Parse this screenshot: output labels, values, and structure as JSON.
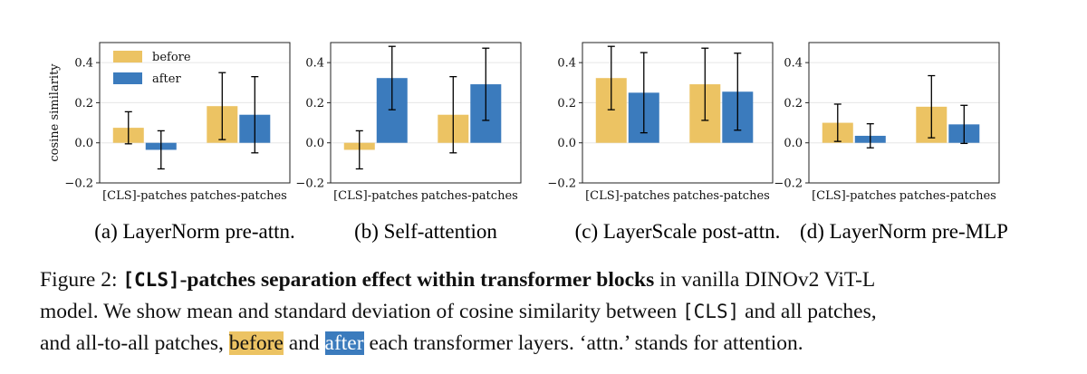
{
  "colors": {
    "before": "#ecc363",
    "after": "#3b7bbd",
    "grid": "#e6e6e6",
    "error_bar": "#000000"
  },
  "legend": {
    "before": "before",
    "after": "after",
    "position": "upper-left (first panel)"
  },
  "ylabel": "cosine similarity",
  "chart_data": [
    {
      "type": "bar",
      "caption": "(a) LayerNorm pre-attn.",
      "categories": [
        "[CLS]-patches",
        "patches-patches"
      ],
      "ylim": [
        -0.2,
        0.5
      ],
      "yticks": [
        "0.4",
        "0.2",
        "0.0",
        "−0.2"
      ],
      "ylabel": "cosine similarity",
      "grid": true,
      "series": [
        {
          "name": "before",
          "values": [
            0.075,
            0.183
          ],
          "err": [
            0.08,
            0.167
          ]
        },
        {
          "name": "after",
          "values": [
            -0.035,
            0.14
          ],
          "err": [
            0.095,
            0.19
          ]
        }
      ]
    },
    {
      "type": "bar",
      "caption": "(b) Self-attention",
      "categories": [
        "[CLS]-patches",
        "patches-patches"
      ],
      "ylim": [
        -0.2,
        0.5
      ],
      "yticks": [
        "0.4",
        "0.2",
        "0.0",
        "−0.2"
      ],
      "grid": true,
      "series": [
        {
          "name": "before",
          "values": [
            -0.035,
            0.14
          ],
          "err": [
            0.095,
            0.19
          ]
        },
        {
          "name": "after",
          "values": [
            0.323,
            0.292
          ],
          "err": [
            0.158,
            0.18
          ]
        }
      ]
    },
    {
      "type": "bar",
      "caption": "(c) LayerScale post-attn.",
      "categories": [
        "[CLS]-patches",
        "patches-patches"
      ],
      "ylim": [
        -0.2,
        0.5
      ],
      "yticks": [
        "0.4",
        "0.2",
        "0.0",
        "−0.2"
      ],
      "grid": true,
      "series": [
        {
          "name": "before",
          "values": [
            0.323,
            0.292
          ],
          "err": [
            0.158,
            0.18
          ]
        },
        {
          "name": "after",
          "values": [
            0.25,
            0.255
          ],
          "err": [
            0.2,
            0.192
          ]
        }
      ]
    },
    {
      "type": "bar",
      "caption": "(d) LayerNorm pre-MLP",
      "categories": [
        "[CLS]-patches",
        "patches-patches"
      ],
      "ylim": [
        -0.2,
        0.5
      ],
      "yticks": [
        "0.4",
        "0.2",
        "0.0",
        "−0.2"
      ],
      "grid": true,
      "series": [
        {
          "name": "before",
          "values": [
            0.1,
            0.18
          ],
          "err": [
            0.093,
            0.155
          ]
        },
        {
          "name": "after",
          "values": [
            0.035,
            0.092
          ],
          "err": [
            0.06,
            0.095
          ]
        }
      ]
    }
  ],
  "caption": {
    "fig_label": "Figure 2:",
    "cls_token": "[CLS]",
    "bold_title": "-patches separation effect within transformer blocks",
    "line1_rest": "in vanilla DINOv2 ViT-L",
    "line2_start": "model. We show mean and standard deviation of cosine similarity between",
    "line2_cls": "[CLS]",
    "line2_end": "and all patches,",
    "line3_start": "and all-to-all patches,",
    "line3_before": "before",
    "line3_and": "and",
    "line3_after": "after",
    "line3_end": "each transformer layers. ‘attn.’ stands for attention."
  }
}
